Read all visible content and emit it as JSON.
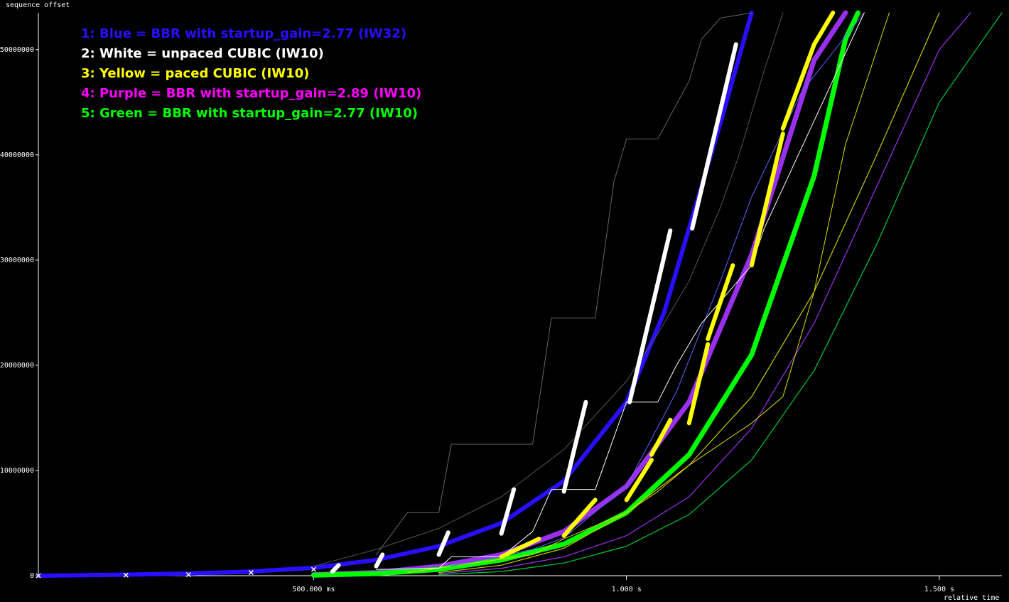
{
  "chart_data": {
    "type": "line",
    "title": "",
    "xlabel": "relative time",
    "ylabel": "sequence offset",
    "xlim": [
      0.06,
      1.6
    ],
    "ylim": [
      0,
      53500000
    ],
    "grid": false,
    "legend_position": "top-left",
    "y_ticks": [
      {
        "value": 0,
        "label": "0"
      },
      {
        "value": 10000000,
        "label": "10000000"
      },
      {
        "value": 20000000,
        "label": "20000000"
      },
      {
        "value": 30000000,
        "label": "30000000"
      },
      {
        "value": 40000000,
        "label": "40000000"
      },
      {
        "value": 50000000,
        "label": "50000000"
      }
    ],
    "x_ticks": [
      {
        "value": 0.5,
        "label": "500.000 ms"
      },
      {
        "value": 1.0,
        "label": "1.000  s"
      },
      {
        "value": 1.5,
        "label": "1.500  s"
      }
    ],
    "legend": [
      {
        "label": "1: Blue = BBR with startup_gain=2.77 (IW32)",
        "color": "#2a0fff"
      },
      {
        "label": "2: White = unpaced CUBIC (IW10)",
        "color": "#ffffff"
      },
      {
        "label": "3: Yellow = paced CUBIC (IW10)",
        "color": "#ffff00"
      },
      {
        "label": "4: Purple = BBR with startup_gain=2.89 (IW10)",
        "color": "#ff00ff"
      },
      {
        "label": "5: Green = BBR with startup_gain=2.77 (IW10)",
        "color": "#00ff00"
      }
    ],
    "series": [
      {
        "color": "#2a0fff",
        "width": 6,
        "x": [
          0.06,
          0.2,
          0.3,
          0.4,
          0.5,
          0.6,
          0.7,
          0.8,
          0.9,
          1.0,
          1.06,
          1.1,
          1.15,
          1.2
        ],
        "y": [
          0,
          100000,
          200000,
          400000,
          750000,
          1500000,
          2800000,
          5000000,
          9000000,
          16500000,
          25000000,
          33000000,
          43000000,
          53500000
        ]
      },
      {
        "color": "#9a30ee",
        "width": 7,
        "x": [
          0.5,
          0.6,
          0.7,
          0.8,
          0.9,
          1.0,
          1.1,
          1.2,
          1.3,
          1.35
        ],
        "y": [
          100000,
          300000,
          900000,
          2000000,
          4200000,
          8500000,
          16500000,
          30500000,
          49000000,
          53500000
        ]
      },
      {
        "color": "#00ff00",
        "width": 7,
        "x": [
          0.5,
          0.6,
          0.7,
          0.8,
          0.9,
          1.0,
          1.1,
          1.2,
          1.3,
          1.35,
          1.37
        ],
        "y": [
          50000,
          200000,
          600000,
          1500000,
          3000000,
          6000000,
          11500000,
          21000000,
          38000000,
          51000000,
          53500000
        ]
      },
      {
        "color": "#9a30ee",
        "width": 1.2,
        "x": [
          0.7,
          0.8,
          0.9,
          1.0,
          1.1,
          1.2,
          1.3,
          1.4,
          1.5,
          1.55
        ],
        "y": [
          200000,
          700000,
          1800000,
          3800000,
          7500000,
          14000000,
          24000000,
          37000000,
          50000000,
          53500000
        ]
      },
      {
        "color": "#00cc33",
        "width": 1.2,
        "x": [
          0.7,
          0.8,
          0.9,
          1.0,
          1.1,
          1.2,
          1.3,
          1.4,
          1.5,
          1.6
        ],
        "y": [
          100000,
          400000,
          1200000,
          2800000,
          5800000,
          11000000,
          19500000,
          31500000,
          45000000,
          53500000
        ]
      },
      {
        "color": "#cccc00",
        "width": 1.2,
        "x": [
          0.7,
          0.8,
          0.9,
          1.0,
          1.1,
          1.2,
          1.3,
          1.4,
          1.5
        ],
        "y": [
          300000,
          1000000,
          2600000,
          6000000,
          10500000,
          17000000,
          27000000,
          40000000,
          53500000
        ]
      },
      {
        "color": "#dddd00",
        "width": 1,
        "x": [
          0.65,
          0.85,
          0.9,
          1.0,
          1.05,
          1.1,
          1.2,
          1.25,
          1.3,
          1.35,
          1.42
        ],
        "y": [
          300000,
          2000000,
          3500000,
          6000000,
          8000000,
          10500000,
          14500000,
          17000000,
          27000000,
          41000000,
          53500000
        ]
      },
      {
        "color": "#6060ff",
        "width": 1,
        "x": [
          0.72,
          0.85,
          0.9,
          1.0,
          1.08,
          1.15,
          1.2,
          1.28,
          1.38
        ],
        "y": [
          900000,
          2500000,
          3600000,
          8500000,
          17500000,
          28000000,
          36000000,
          46000000,
          53500000
        ]
      },
      {
        "color": "#ffffff",
        "width": 1,
        "x": [
          0.6,
          0.7,
          0.72,
          0.8,
          0.85,
          0.88,
          0.95,
          1.0,
          1.05,
          1.08,
          1.12,
          1.2,
          1.22,
          1.38
        ],
        "y": [
          600000,
          700000,
          1800000,
          1800000,
          4200000,
          8200000,
          8200000,
          16500000,
          16500000,
          20000000,
          24000000,
          29500000,
          33000000,
          53500000
        ]
      },
      {
        "color": "#666666",
        "width": 1,
        "x": [
          0.6,
          0.65,
          0.7,
          0.72,
          0.85,
          0.88,
          0.95,
          0.98,
          1.0,
          1.05,
          1.1,
          1.12,
          1.15,
          1.2
        ],
        "y": [
          2000000,
          6000000,
          6000000,
          12500000,
          12500000,
          24500000,
          24500000,
          37500000,
          41500000,
          41500000,
          47000000,
          51000000,
          53000000,
          53500000
        ]
      },
      {
        "color": "#555555",
        "width": 1,
        "x": [
          0.5,
          0.6,
          0.7,
          0.8,
          0.9,
          1.0,
          1.05,
          1.1,
          1.15,
          1.18,
          1.22,
          1.25
        ],
        "y": [
          900000,
          2500000,
          4500000,
          7500000,
          12000000,
          18500000,
          23000000,
          28000000,
          35000000,
          40000000,
          48000000,
          53500000
        ]
      }
    ],
    "segments": [
      {
        "color": "#ffffff",
        "width": 6,
        "x1": 0.53,
        "y1": 400000,
        "x2": 0.54,
        "y2": 1000000
      },
      {
        "color": "#ffffff",
        "width": 6,
        "x1": 0.6,
        "y1": 900000,
        "x2": 0.61,
        "y2": 2000000
      },
      {
        "color": "#ffffff",
        "width": 6,
        "x1": 0.7,
        "y1": 2000000,
        "x2": 0.715,
        "y2": 4100000
      },
      {
        "color": "#ffffff",
        "width": 6,
        "x1": 0.8,
        "y1": 4000000,
        "x2": 0.82,
        "y2": 8200000
      },
      {
        "color": "#ffffff",
        "width": 6,
        "x1": 0.9,
        "y1": 8000000,
        "x2": 0.935,
        "y2": 16500000
      },
      {
        "color": "#ffffff",
        "width": 6,
        "x1": 1.005,
        "y1": 16500000,
        "x2": 1.07,
        "y2": 32800000
      },
      {
        "color": "#ffffff",
        "width": 6,
        "x1": 1.105,
        "y1": 33000000,
        "x2": 1.175,
        "y2": 50500000
      },
      {
        "color": "#ffff00",
        "width": 6,
        "x1": 0.8,
        "y1": 1800000,
        "x2": 0.86,
        "y2": 3500000
      },
      {
        "color": "#ffff00",
        "width": 6,
        "x1": 0.9,
        "y1": 3800000,
        "x2": 0.95,
        "y2": 7200000
      },
      {
        "color": "#ffff00",
        "width": 6,
        "x1": 1.0,
        "y1": 7200000,
        "x2": 1.04,
        "y2": 11000000
      },
      {
        "color": "#ffff00",
        "width": 6,
        "x1": 1.04,
        "y1": 11500000,
        "x2": 1.07,
        "y2": 14800000
      },
      {
        "color": "#ffff00",
        "width": 6,
        "x1": 1.1,
        "y1": 14500000,
        "x2": 1.13,
        "y2": 22000000
      },
      {
        "color": "#ffff00",
        "width": 6,
        "x1": 1.13,
        "y1": 22500000,
        "x2": 1.17,
        "y2": 29500000
      },
      {
        "color": "#ffff00",
        "width": 6,
        "x1": 1.2,
        "y1": 29500000,
        "x2": 1.25,
        "y2": 42000000
      },
      {
        "color": "#ffff00",
        "width": 6,
        "x1": 1.25,
        "y1": 42500000,
        "x2": 1.3,
        "y2": 50500000
      },
      {
        "color": "#ffff00",
        "width": 6,
        "x1": 1.3,
        "y1": 50500000,
        "x2": 1.33,
        "y2": 53500000
      }
    ],
    "markers": [
      {
        "x": 0.06,
        "y": 0
      },
      {
        "x": 0.2,
        "y": 50000
      },
      {
        "x": 0.3,
        "y": 100000
      },
      {
        "x": 0.4,
        "y": 300000
      },
      {
        "x": 0.5,
        "y": 600000
      }
    ]
  }
}
